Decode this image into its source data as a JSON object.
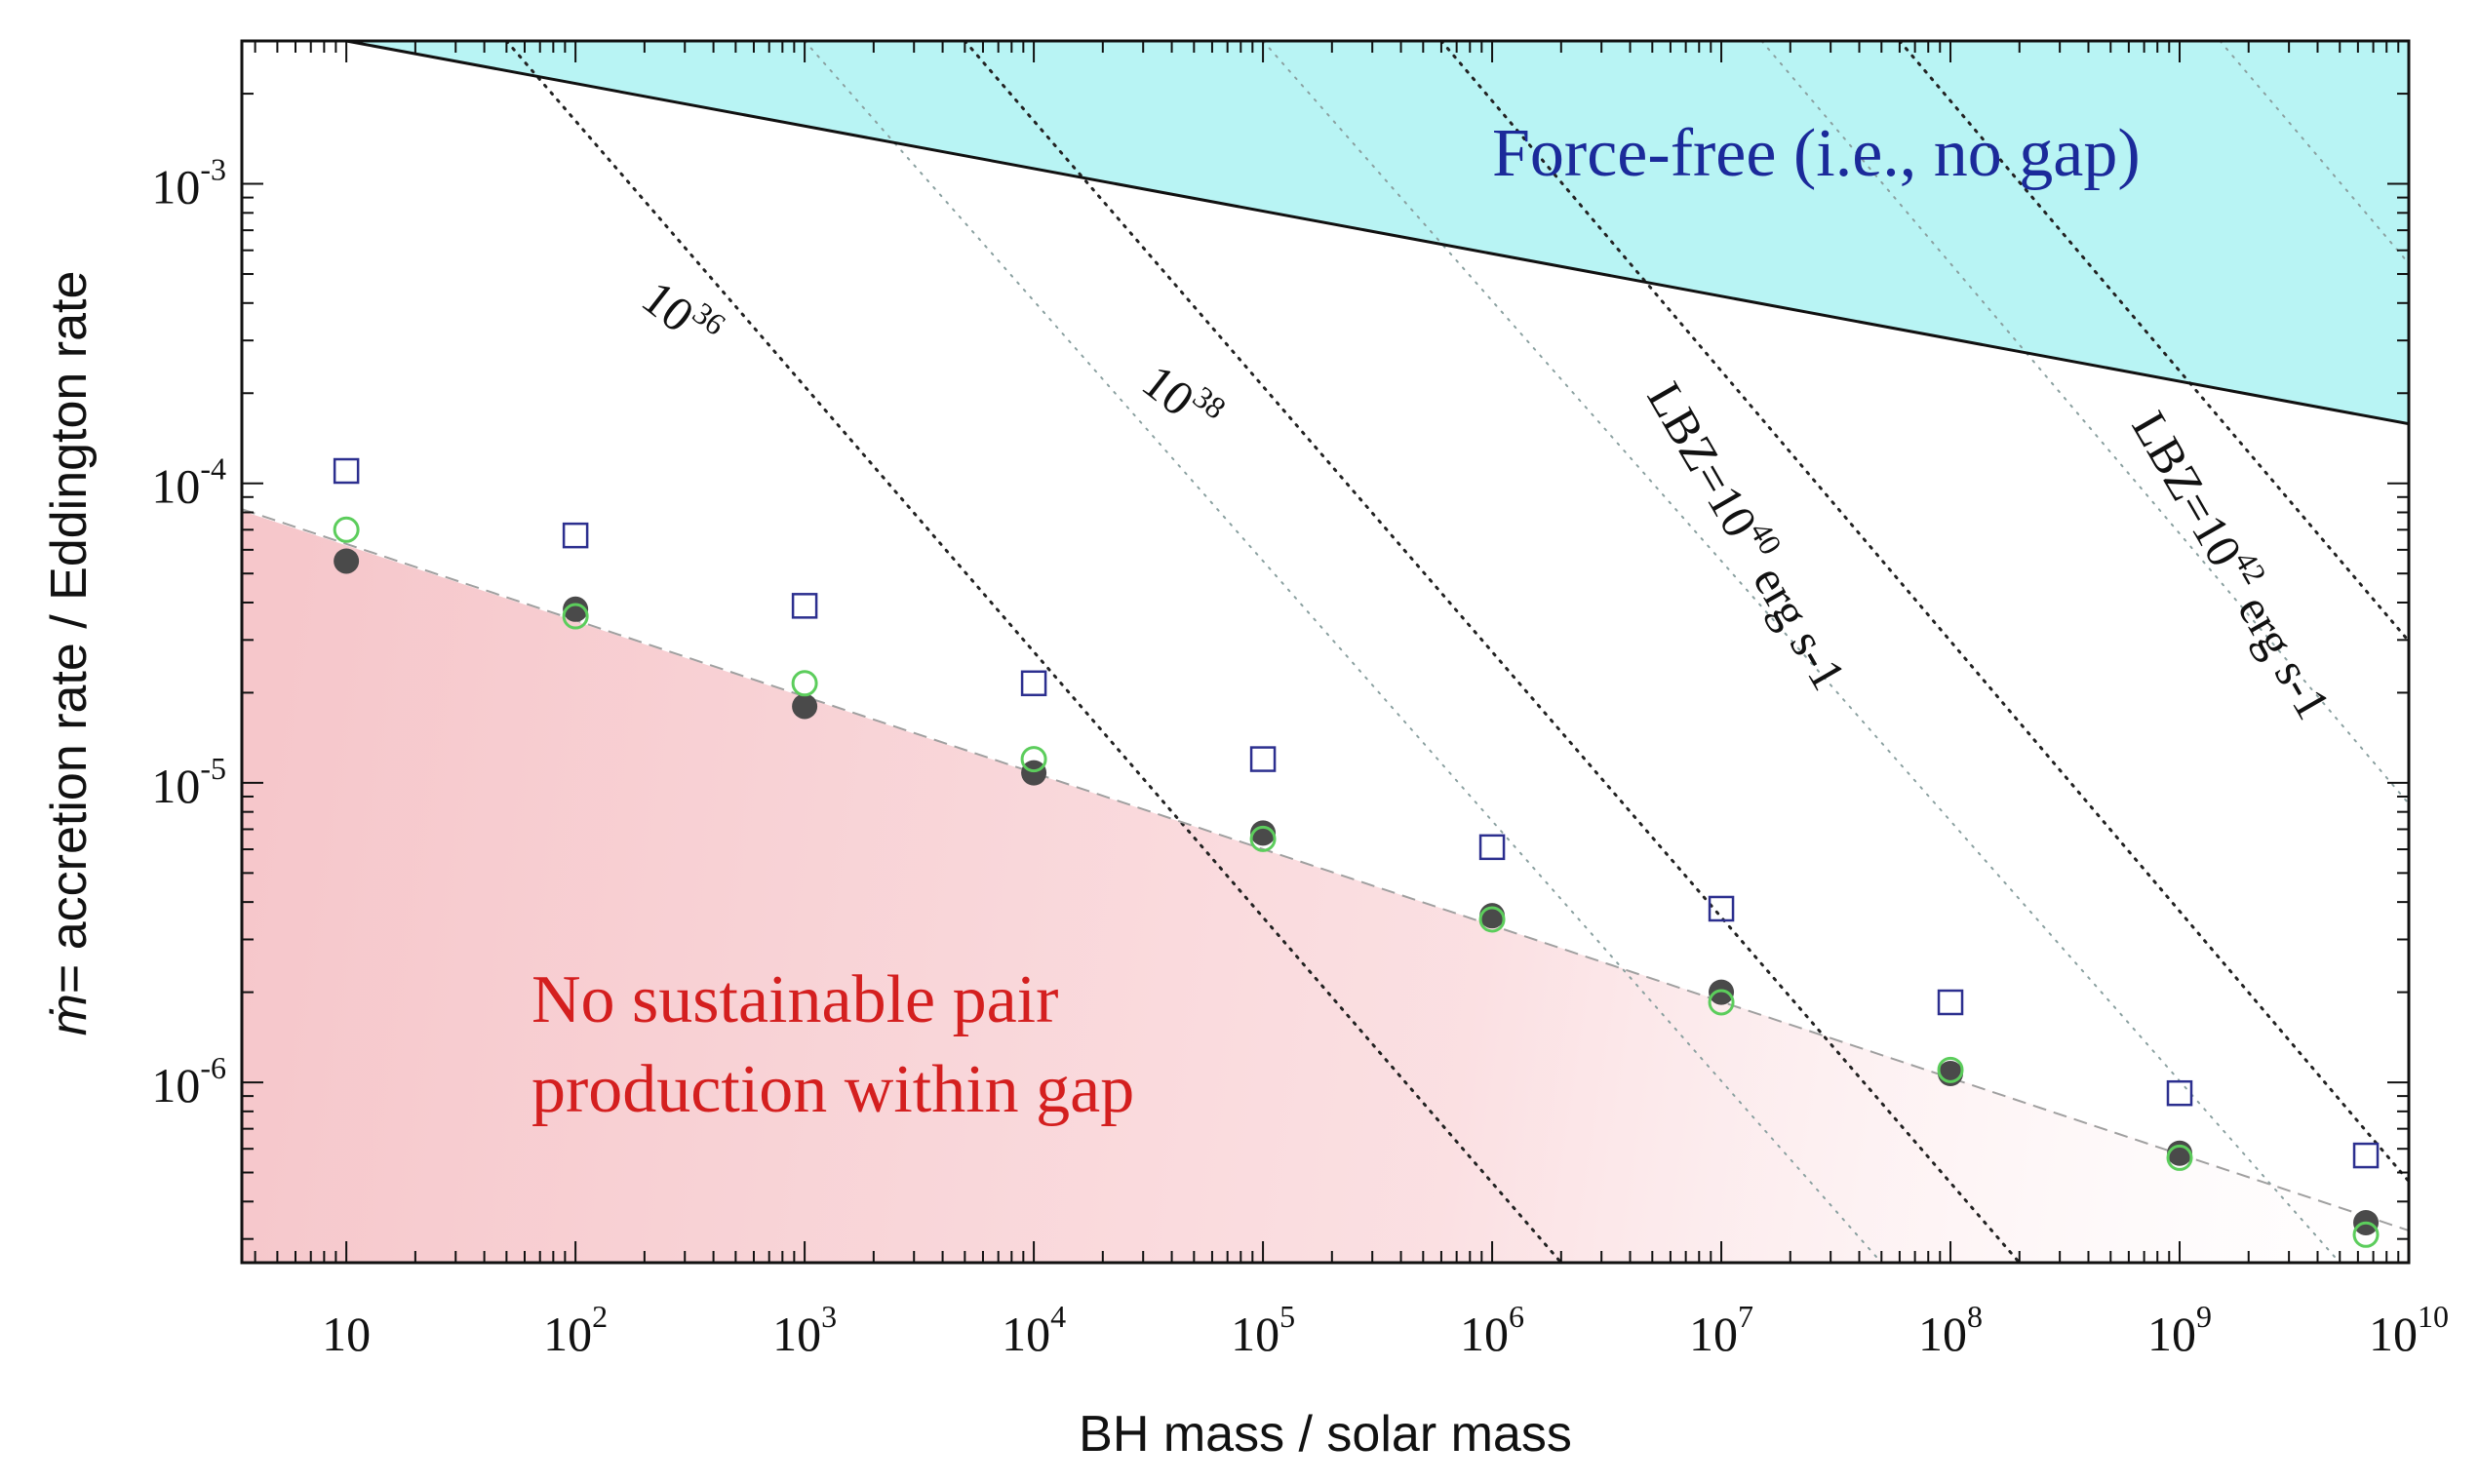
{
  "chart_data": {
    "type": "scatter",
    "title": "",
    "xlabel": "BH mass / solar mass",
    "ylabel": "ṁ= accretion rate / Eddington rate",
    "ylabel_symbol": "ṁ",
    "ylabel_text": "= accretion rate / Eddington rate",
    "xscale": "log",
    "yscale": "log",
    "xlim": [
      3.5,
      10000000000
    ],
    "ylim": [
      2.5e-07,
      0.003
    ],
    "x_ticks": [
      {
        "base": "10",
        "exp": ""
      },
      {
        "base": "10",
        "exp": "2"
      },
      {
        "base": "10",
        "exp": "3"
      },
      {
        "base": "10",
        "exp": "4"
      },
      {
        "base": "10",
        "exp": "5"
      },
      {
        "base": "10",
        "exp": "6"
      },
      {
        "base": "10",
        "exp": "7"
      },
      {
        "base": "10",
        "exp": "8"
      },
      {
        "base": "10",
        "exp": "9"
      },
      {
        "base": "10",
        "exp": "10"
      }
    ],
    "x_tick_values": [
      10,
      100,
      1000,
      10000,
      100000,
      1000000,
      10000000,
      100000000,
      1000000000,
      10000000000
    ],
    "y_ticks": [
      {
        "base": "10",
        "exp": "-3"
      },
      {
        "base": "10",
        "exp": "-4"
      },
      {
        "base": "10",
        "exp": "-5"
      },
      {
        "base": "10",
        "exp": "-6"
      }
    ],
    "y_tick_values": [
      0.001,
      0.0001,
      1e-05,
      1e-06
    ],
    "series": [
      {
        "name": "filled circles",
        "marker": "filled-circle",
        "color": "#4a4a4a",
        "x": [
          10,
          100,
          1000,
          10000,
          100000,
          1000000,
          10000000,
          100000000,
          1000000000,
          6500000000
        ],
        "y": [
          5.5e-05,
          3.8e-05,
          1.8e-05,
          1.08e-05,
          6.8e-06,
          3.6e-06,
          2e-06,
          1.07e-06,
          5.8e-07,
          3.4e-07
        ]
      },
      {
        "name": "open green circles",
        "marker": "open-circle",
        "color": "#5ccd5c",
        "x": [
          10,
          100,
          1000,
          10000,
          100000,
          1000000,
          10000000,
          100000000,
          1000000000,
          6500000000
        ],
        "y": [
          7e-05,
          3.6e-05,
          2.15e-05,
          1.2e-05,
          6.5e-06,
          3.5e-06,
          1.85e-06,
          1.1e-06,
          5.6e-07,
          3.1e-07
        ]
      },
      {
        "name": "open squares",
        "marker": "open-square",
        "color": "#2c2f8f",
        "x": [
          10,
          100,
          1000,
          10000,
          100000,
          1000000,
          10000000,
          100000000,
          1000000000,
          6500000000
        ],
        "y": [
          0.00011,
          6.7e-05,
          3.9e-05,
          2.15e-05,
          1.2e-05,
          6.1e-06,
          3.8e-06,
          1.85e-06,
          9.2e-07,
          5.7e-07
        ]
      }
    ],
    "fit_line": {
      "style": "dashed",
      "color": "#a0a0a0",
      "x": [
        3.5,
        10000000000
      ],
      "y": [
        8.2e-05,
        3.2e-07
      ]
    },
    "boundary_line": {
      "style": "solid",
      "color": "#111111",
      "x": [
        10,
        10000000000
      ],
      "y": [
        0.003,
        0.000158
      ]
    },
    "isolines": [
      {
        "label_base": "10",
        "label_exp": "36",
        "label_suffix": "",
        "label_prefix": "",
        "dot_color": "#222",
        "top_mass": 50,
        "bottom_mass": 2000000
      },
      {
        "label_base": "10",
        "label_exp": "38",
        "label_suffix": "",
        "label_prefix": "",
        "dot_color": "#222",
        "top_mass": 5000,
        "bottom_mass": 200000000
      },
      {
        "label_base": "10",
        "label_exp": "40",
        "label_suffix": " erg s-1",
        "label_prefix": "LBZ=",
        "dot_color": "#222",
        "top_mass": 600000,
        "bottom_mass": 20000000000
      },
      {
        "label_base": "10",
        "label_exp": "42",
        "label_suffix": " erg s-1",
        "label_prefix": "LBZ=",
        "dot_color": "#222",
        "top_mass": 60000000,
        "bottom_mass": 2000000000000
      }
    ],
    "faint_isolines": [
      {
        "top_mass": 1000,
        "bottom_mass": 50000000
      },
      {
        "top_mass": 100000,
        "bottom_mass": 5000000000
      },
      {
        "top_mass": 15000000,
        "bottom_mass": 500000000000
      },
      {
        "top_mass": 1500000000,
        "bottom_mass": 50000000000000
      }
    ],
    "regions": {
      "force_free": {
        "label": "Force-free (i.e., no gap)",
        "color": "#b8f4f4"
      },
      "no_pair": {
        "label_line1": "No sustainable pair",
        "label_line2": "production within gap",
        "color": "#f8cfd2"
      }
    }
  }
}
